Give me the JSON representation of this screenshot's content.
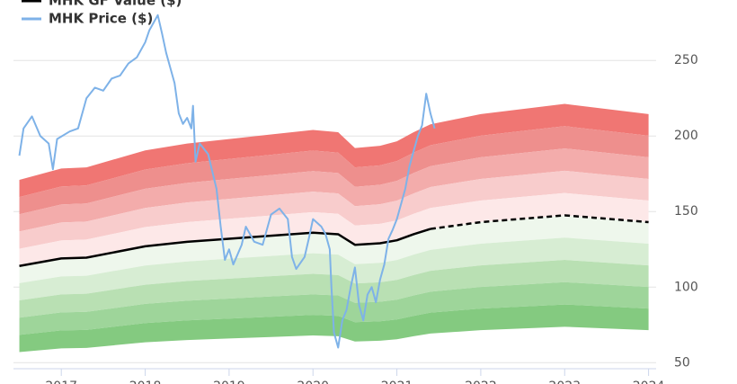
{
  "chart_data": {
    "type": "line",
    "xlim": [
      2016.43,
      2024.09
    ],
    "xticks": [
      2017,
      2018,
      2019,
      2020,
      2021,
      2022,
      2023,
      2024
    ],
    "ylim": [
      46,
      290
    ],
    "yticks": [
      50,
      100,
      150,
      200,
      250
    ],
    "grid": true,
    "bands": {
      "multipliers": [
        1.5,
        1.4,
        1.3,
        1.2,
        1.1,
        1.0,
        0.9,
        0.8,
        0.7,
        0.6,
        0.5
      ],
      "colors": [
        "#f07673",
        "#ee8f8d",
        "#f3acab",
        "#f8cccc",
        "#fde8e8",
        "#eef7ec",
        "#d7edd3",
        "#b9e0b3",
        "#9ed59a",
        "#84ca80"
      ]
    },
    "series": [
      {
        "name": "MHK GF Value ($)",
        "color": "#000000",
        "dashed_after": 2021.4,
        "x": [
          2016.5,
          2017,
          2017.3,
          2018,
          2018.5,
          2019,
          2019.5,
          2020,
          2020.3,
          2020.5,
          2020.8,
          2021,
          2021.2,
          2021.4,
          2022,
          2023,
          2024
        ],
        "values": [
          114,
          119,
          119.5,
          127,
          130,
          132,
          134,
          136,
          135,
          128,
          129,
          131,
          135,
          138.5,
          143,
          147.5,
          143
        ]
      },
      {
        "name": "MHK Price ($)",
        "color": "#7eb2e8",
        "x": [
          2016.5,
          2016.55,
          2016.65,
          2016.75,
          2016.85,
          2016.9,
          2016.95,
          2017.1,
          2017.2,
          2017.3,
          2017.4,
          2017.5,
          2017.6,
          2017.7,
          2017.8,
          2017.9,
          2018.0,
          2018.05,
          2018.1,
          2018.15,
          2018.2,
          2018.25,
          2018.3,
          2018.35,
          2018.4,
          2018.45,
          2018.5,
          2018.55,
          2018.57,
          2018.6,
          2018.65,
          2018.75,
          2018.85,
          2018.9,
          2018.95,
          2019.0,
          2019.05,
          2019.15,
          2019.2,
          2019.3,
          2019.4,
          2019.5,
          2019.6,
          2019.7,
          2019.75,
          2019.8,
          2019.9,
          2019.95,
          2020.0,
          2020.1,
          2020.15,
          2020.2,
          2020.22,
          2020.25,
          2020.3,
          2020.35,
          2020.4,
          2020.45,
          2020.5,
          2020.55,
          2020.6,
          2020.65,
          2020.7,
          2020.75,
          2020.8,
          2020.85,
          2020.9,
          2020.95,
          2021.0,
          2021.1,
          2021.15,
          2021.2,
          2021.25,
          2021.3,
          2021.35,
          2021.4,
          2021.45
        ],
        "values": [
          187,
          205,
          213,
          200,
          195,
          178,
          198,
          203,
          205,
          225,
          232,
          230,
          238,
          240,
          248,
          252,
          262,
          270,
          275,
          280,
          268,
          255,
          245,
          235,
          215,
          208,
          212,
          205,
          220,
          183,
          195,
          188,
          165,
          140,
          118,
          125,
          115,
          128,
          140,
          130,
          128,
          148,
          152,
          145,
          120,
          112,
          120,
          132,
          145,
          140,
          135,
          125,
          100,
          70,
          60,
          78,
          85,
          100,
          113,
          88,
          78,
          95,
          100,
          90,
          105,
          115,
          132,
          138,
          145,
          165,
          180,
          190,
          200,
          207,
          228,
          215,
          205
        ]
      }
    ]
  }
}
